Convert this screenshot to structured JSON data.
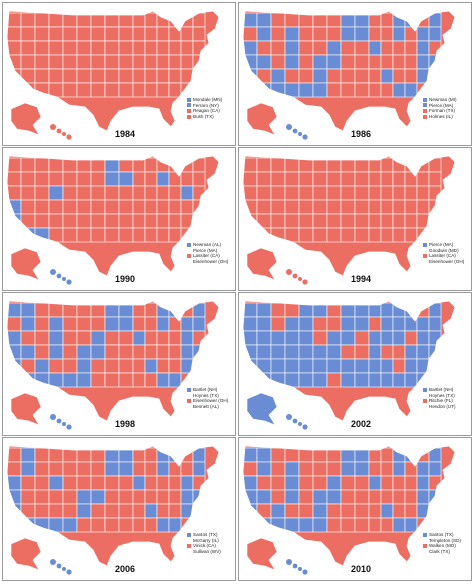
{
  "colors": {
    "red": "#ec6e63",
    "blue": "#6a8cd4",
    "border": "#ffffff",
    "frame": "#9a9a9a"
  },
  "panels": [
    {
      "year": "1984",
      "rep_share": 0.95,
      "legend": [
        {
          "text": "Mondale (MN)",
          "color": "blue"
        },
        {
          "text": "Ferraro (NY)",
          "color": "blue"
        },
        {
          "text": "Reagan (CA)",
          "color": "red"
        },
        {
          "text": "Bush (TX)",
          "color": "red"
        }
      ]
    },
    {
      "year": "1986",
      "rep_share": 0.55,
      "legend": [
        {
          "text": "Newman (MI)",
          "color": "blue"
        },
        {
          "text": "Pierce (MA)",
          "color": "blue"
        },
        {
          "text": "Forman (TX)",
          "color": "red"
        },
        {
          "text": "Holmes (IL)",
          "color": "red"
        }
      ]
    },
    {
      "year": "1990",
      "rep_share": 0.85,
      "legend": [
        {
          "text": "Newman (AL)",
          "color": "blue"
        },
        {
          "text": "Pierce (MA)",
          "color": "none"
        },
        {
          "text": "Lassiter (CA)",
          "color": "red"
        },
        {
          "text": "Eisenhower (OH)",
          "color": "none"
        }
      ]
    },
    {
      "year": "1994",
      "rep_share": 0.99,
      "legend": [
        {
          "text": "Pierce (MA)",
          "color": "blue"
        },
        {
          "text": "Goodwin (MD)",
          "color": "none"
        },
        {
          "text": "Lassiter (CA)",
          "color": "red"
        },
        {
          "text": "Eisenhower (OH)",
          "color": "none"
        }
      ]
    },
    {
      "year": "1998",
      "rep_share": 0.55,
      "legend": [
        {
          "text": "Bartlet (NH)",
          "color": "blue"
        },
        {
          "text": "Hoynes (TX)",
          "color": "none"
        },
        {
          "text": "Eisenhower (OH)",
          "color": "red"
        },
        {
          "text": "Bennett (AL)",
          "color": "none"
        }
      ]
    },
    {
      "year": "2002",
      "rep_share": 0.35,
      "legend": [
        {
          "text": "Bartlet (NH)",
          "color": "blue"
        },
        {
          "text": "Hoynes (TX)",
          "color": "none"
        },
        {
          "text": "Ritchie (FL)",
          "color": "red"
        },
        {
          "text": "Hendon (UT)",
          "color": "none"
        }
      ]
    },
    {
      "year": "2006",
      "rep_share": 0.6,
      "legend": [
        {
          "text": "Santos (TX)",
          "color": "blue"
        },
        {
          "text": "McGarry (IL)",
          "color": "none"
        },
        {
          "text": "Vinick (CA)",
          "color": "red"
        },
        {
          "text": "Sullivan (WV)",
          "color": "none"
        }
      ]
    },
    {
      "year": "2010",
      "rep_share": 0.55,
      "legend": [
        {
          "text": "Santos (TX)",
          "color": "blue"
        },
        {
          "text": "Templeton (SD)",
          "color": "none"
        },
        {
          "text": "Walken (MO)",
          "color": "red"
        },
        {
          "text": "Clark (TX)",
          "color": "none"
        }
      ]
    }
  ]
}
